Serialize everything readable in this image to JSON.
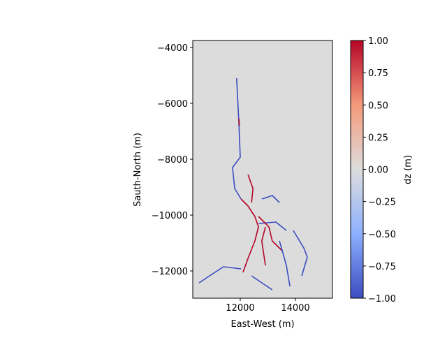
{
  "chart_data": {
    "type": "heatmap",
    "xlabel": "East-West (m)",
    "ylabel": "Sauth-North (m)",
    "xlim": [
      10280,
      15340
    ],
    "ylim": [
      -12975,
      -3750
    ],
    "xticks": [
      12000,
      14000
    ],
    "yticks": [
      {
        "value": -12000,
        "label": "−12000"
      },
      {
        "value": -10000,
        "label": "−10000"
      },
      {
        "value": -8000,
        "label": "−8000"
      },
      {
        "value": -6000,
        "label": "−6000"
      },
      {
        "value": -4000,
        "label": "−4000"
      }
    ],
    "background_color": "#dcdcdc",
    "colormap": [
      "#3b4cc0",
      "#8db0fe",
      "#dddddd",
      "#f49a7b",
      "#b40426"
    ],
    "colorbar": {
      "label": "dz (m)",
      "lim": [
        -1,
        1
      ],
      "ticks": [
        {
          "value": -1,
          "label": "−1.00"
        },
        {
          "value": -0.75,
          "label": "−0.75"
        },
        {
          "value": -0.5,
          "label": "−0.50"
        },
        {
          "value": -0.25,
          "label": "−0.25"
        },
        {
          "value": 0,
          "label": "0.00"
        },
        {
          "value": 0.25,
          "label": "0.25"
        },
        {
          "value": 0.5,
          "label": "0.50"
        },
        {
          "value": 0.75,
          "label": "0.75"
        },
        {
          "value": 1,
          "label": "1.00"
        }
      ]
    },
    "streams": [
      {
        "value": -1,
        "x": [
          11870,
          11950,
          12000,
          11720,
          11800,
          12030
        ],
        "y": [
          -5100,
          -6675,
          -7925,
          -8300,
          -9050,
          -9425
        ]
      },
      {
        "value": 1,
        "x": [
          12030,
          12280,
          12530,
          12660,
          12530,
          12280,
          12100
        ],
        "y": [
          -9425,
          -9675,
          -10050,
          -10425,
          -10925,
          -11550,
          -12050
        ]
      },
      {
        "value": 1,
        "x": [
          12280,
          12460,
          12410
        ],
        "y": [
          -8550,
          -9050,
          -9550
        ]
      },
      {
        "value": -1,
        "x": [
          12030,
          11390,
          10890,
          10510
        ],
        "y": [
          -11925,
          -11850,
          -12175,
          -12425
        ]
      },
      {
        "value": -1,
        "x": [
          12660,
          13290,
          13670
        ],
        "y": [
          -10300,
          -10250,
          -10550
        ]
      },
      {
        "value": 1,
        "x": [
          12660,
          13040,
          13160,
          13540
        ],
        "y": [
          -10050,
          -10425,
          -10925,
          -11300
        ]
      },
      {
        "value": -1,
        "x": [
          13920,
          14300,
          14430,
          14230
        ],
        "y": [
          -10550,
          -11175,
          -11500,
          -12175
        ]
      },
      {
        "value": -1,
        "x": [
          13420,
          13670,
          13800
        ],
        "y": [
          -10925,
          -11800,
          -12550
        ]
      },
      {
        "value": -1,
        "x": [
          12410,
          12780,
          13160
        ],
        "y": [
          -12175,
          -12425,
          -12675
        ]
      },
      {
        "value": 1,
        "x": [
          11950,
          11970
        ],
        "y": [
          -6550,
          -6800
        ]
      },
      {
        "value": -1,
        "x": [
          12780,
          13160,
          13420
        ],
        "y": [
          -9425,
          -9300,
          -9550
        ]
      },
      {
        "value": 1,
        "x": [
          12910,
          12780,
          12910
        ],
        "y": [
          -10425,
          -10925,
          -11800
        ]
      }
    ]
  }
}
